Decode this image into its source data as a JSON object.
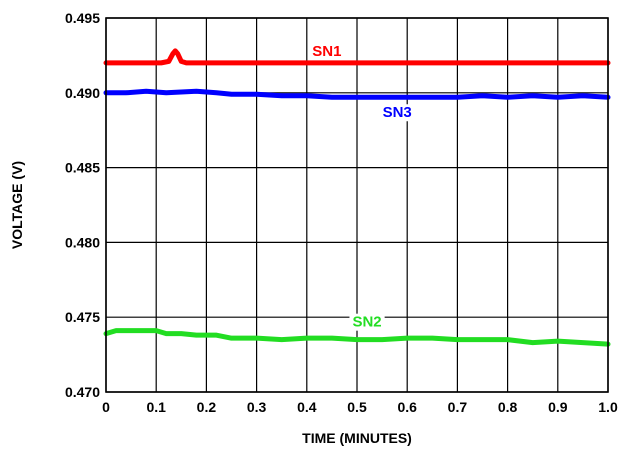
{
  "chart_data": {
    "type": "line",
    "title": "",
    "xlabel": "TIME (MINUTES)",
    "ylabel": "VOLTAGE (V)",
    "xlim": [
      0,
      1.0
    ],
    "ylim": [
      0.47,
      0.495
    ],
    "grid": true,
    "x_ticks": [
      0,
      0.1,
      0.2,
      0.3,
      0.4,
      0.5,
      0.6,
      0.7,
      0.8,
      0.9,
      1.0
    ],
    "x_tick_labels": [
      "0",
      "0.1",
      "0.2",
      "0.3",
      "0.4",
      "0.5",
      "0.6",
      "0.7",
      "0.8",
      "0.9",
      "1.0"
    ],
    "y_ticks": [
      0.47,
      0.475,
      0.48,
      0.485,
      0.49,
      0.495
    ],
    "y_tick_labels": [
      "0.470",
      "0.475",
      "0.480",
      "0.485",
      "0.490",
      "0.495"
    ],
    "series": [
      {
        "name": "SN1",
        "color": "#ff0000",
        "label_at": [
          0.44,
          0.4928
        ],
        "points": [
          [
            0.0,
            0.492
          ],
          [
            0.11,
            0.492
          ],
          [
            0.125,
            0.4921
          ],
          [
            0.133,
            0.4926
          ],
          [
            0.138,
            0.4928
          ],
          [
            0.143,
            0.4926
          ],
          [
            0.15,
            0.4921
          ],
          [
            0.16,
            0.492
          ],
          [
            0.3,
            0.492
          ],
          [
            0.5,
            0.492
          ],
          [
            0.7,
            0.492
          ],
          [
            1.0,
            0.492
          ]
        ]
      },
      {
        "name": "SN3",
        "color": "#0000ff",
        "label_at": [
          0.58,
          0.4887
        ],
        "points": [
          [
            0.0,
            0.49
          ],
          [
            0.04,
            0.49
          ],
          [
            0.08,
            0.4901
          ],
          [
            0.12,
            0.49
          ],
          [
            0.18,
            0.4901
          ],
          [
            0.22,
            0.49
          ],
          [
            0.25,
            0.4899
          ],
          [
            0.3,
            0.4899
          ],
          [
            0.35,
            0.4898
          ],
          [
            0.4,
            0.4898
          ],
          [
            0.45,
            0.4897
          ],
          [
            0.5,
            0.4897
          ],
          [
            0.55,
            0.4897
          ],
          [
            0.6,
            0.4897
          ],
          [
            0.65,
            0.4897
          ],
          [
            0.7,
            0.4897
          ],
          [
            0.75,
            0.4898
          ],
          [
            0.8,
            0.4897
          ],
          [
            0.85,
            0.4898
          ],
          [
            0.9,
            0.4897
          ],
          [
            0.95,
            0.4898
          ],
          [
            1.0,
            0.4897
          ]
        ]
      },
      {
        "name": "SN2",
        "color": "#22dd22",
        "label_at": [
          0.52,
          0.4747
        ],
        "points": [
          [
            0.0,
            0.4739
          ],
          [
            0.02,
            0.4741
          ],
          [
            0.05,
            0.4741
          ],
          [
            0.1,
            0.4741
          ],
          [
            0.12,
            0.4739
          ],
          [
            0.15,
            0.4739
          ],
          [
            0.18,
            0.4738
          ],
          [
            0.22,
            0.4738
          ],
          [
            0.25,
            0.4736
          ],
          [
            0.3,
            0.4736
          ],
          [
            0.35,
            0.4735
          ],
          [
            0.4,
            0.4736
          ],
          [
            0.45,
            0.4736
          ],
          [
            0.5,
            0.4735
          ],
          [
            0.55,
            0.4735
          ],
          [
            0.6,
            0.4736
          ],
          [
            0.65,
            0.4736
          ],
          [
            0.7,
            0.4735
          ],
          [
            0.75,
            0.4735
          ],
          [
            0.8,
            0.4735
          ],
          [
            0.85,
            0.4733
          ],
          [
            0.9,
            0.4734
          ],
          [
            0.95,
            0.4733
          ],
          [
            1.0,
            0.4732
          ]
        ]
      }
    ]
  }
}
